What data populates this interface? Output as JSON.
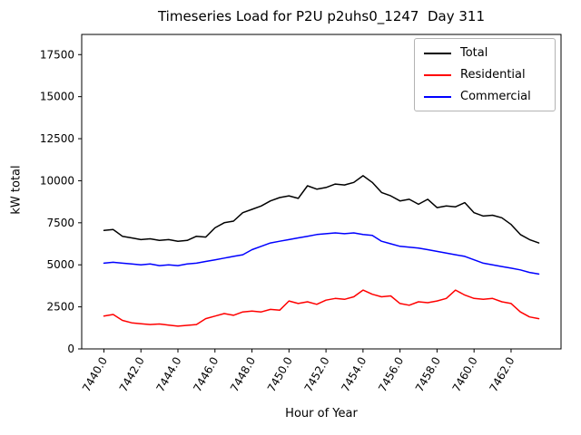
{
  "chart_data": {
    "type": "line",
    "title": "Timeseries Load for P2U p2uhs0_1247  Day 311",
    "xlabel": "Hour of Year",
    "ylabel": "kW total",
    "xlim": [
      7438.8,
      7464.7
    ],
    "ylim": [
      0,
      18700
    ],
    "grid": false,
    "legend_position": "upper right",
    "xticks": [
      7440,
      7442,
      7444,
      7446,
      7448,
      7450,
      7452,
      7454,
      7456,
      7458,
      7460,
      7462
    ],
    "xtick_labels": [
      "7440.0",
      "7442.0",
      "7444.0",
      "7446.0",
      "7448.0",
      "7450.0",
      "7452.0",
      "7454.0",
      "7456.0",
      "7458.0",
      "7460.0",
      "7462.0"
    ],
    "yticks": [
      0,
      2500,
      5000,
      7500,
      10000,
      12500,
      15000,
      17500
    ],
    "ytick_labels": [
      "0",
      "2500",
      "5000",
      "7500",
      "10000",
      "12500",
      "15000",
      "17500"
    ],
    "x": [
      7440.0,
      7440.5,
      7441.0,
      7441.5,
      7442.0,
      7442.5,
      7443.0,
      7443.5,
      7444.0,
      7444.5,
      7445.0,
      7445.5,
      7446.0,
      7446.5,
      7447.0,
      7447.5,
      7448.0,
      7448.5,
      7449.0,
      7449.5,
      7450.0,
      7450.5,
      7451.0,
      7451.5,
      7452.0,
      7452.5,
      7453.0,
      7453.5,
      7454.0,
      7454.5,
      7455.0,
      7455.5,
      7456.0,
      7456.5,
      7457.0,
      7457.5,
      7458.0,
      7458.5,
      7459.0,
      7459.5,
      7460.0,
      7460.5,
      7461.0,
      7461.5,
      7462.0,
      7462.5,
      7463.0,
      7463.5
    ],
    "series": [
      {
        "name": "Total",
        "color": "#000000",
        "values": [
          7050,
          7100,
          6700,
          6600,
          6500,
          6550,
          6450,
          6500,
          6400,
          6450,
          6700,
          6650,
          7200,
          7500,
          7600,
          8100,
          8300,
          8500,
          8800,
          9000,
          9100,
          8950,
          9700,
          9500,
          9600,
          9800,
          9750,
          9900,
          10300,
          9900,
          9300,
          9100,
          8800,
          8900,
          8600,
          8900,
          8400,
          8500,
          8450,
          8700,
          8100,
          7900,
          7950,
          7800,
          7400,
          6800,
          6500,
          6300
        ]
      },
      {
        "name": "Residential",
        "color": "#ff0000",
        "values": [
          1950,
          2050,
          1700,
          1550,
          1500,
          1450,
          1480,
          1420,
          1350,
          1400,
          1450,
          1800,
          1950,
          2100,
          2000,
          2200,
          2250,
          2200,
          2350,
          2300,
          2850,
          2700,
          2800,
          2650,
          2900,
          3000,
          2950,
          3100,
          3500,
          3250,
          3100,
          3150,
          2700,
          2600,
          2800,
          2750,
          2850,
          3000,
          3500,
          3200,
          3000,
          2950,
          3000,
          2800,
          2700,
          2200,
          1900,
          1800
        ]
      },
      {
        "name": "Commercial",
        "color": "#0000ff",
        "values": [
          5100,
          5150,
          5100,
          5050,
          5000,
          5050,
          4950,
          5000,
          4950,
          5050,
          5100,
          5200,
          5300,
          5400,
          5500,
          5600,
          5900,
          6100,
          6300,
          6400,
          6500,
          6600,
          6700,
          6800,
          6850,
          6900,
          6850,
          6900,
          6800,
          6750,
          6400,
          6250,
          6100,
          6050,
          6000,
          5900,
          5800,
          5700,
          5600,
          5500,
          5300,
          5100,
          5000,
          4900,
          4800,
          4700,
          4550,
          4450
        ]
      }
    ]
  }
}
